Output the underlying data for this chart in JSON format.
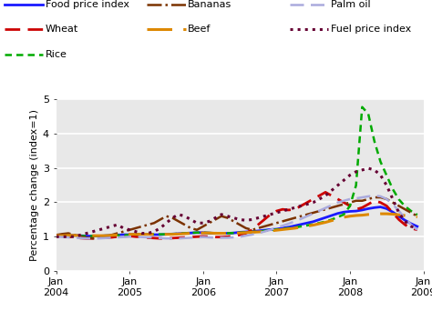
{
  "ylabel": "Percentage change (index=1)",
  "ylim": [
    0,
    5
  ],
  "yticks": [
    0,
    1,
    2,
    3,
    4,
    5
  ],
  "background_color": "#e8e8e8",
  "series": {
    "Food price index": {
      "color": "#1a1aff",
      "linestyle": "solid",
      "linewidth": 2.0,
      "dashes": null,
      "values": [
        1.02,
        1.02,
        1.03,
        1.03,
        1.02,
        1.01,
        1.01,
        1.01,
        1.02,
        1.03,
        1.04,
        1.05,
        1.05,
        1.06,
        1.06,
        1.06,
        1.05,
        1.05,
        1.06,
        1.07,
        1.08,
        1.09,
        1.1,
        1.11,
        1.11,
        1.1,
        1.09,
        1.09,
        1.09,
        1.1,
        1.12,
        1.13,
        1.14,
        1.16,
        1.18,
        1.2,
        1.21,
        1.24,
        1.27,
        1.31,
        1.35,
        1.39,
        1.43,
        1.49,
        1.55,
        1.61,
        1.67,
        1.71,
        1.73,
        1.74,
        1.77,
        1.81,
        1.84,
        1.86,
        1.81,
        1.71,
        1.59,
        1.47,
        1.37,
        1.29
      ]
    },
    "Wheat": {
      "color": "#cc0000",
      "linestyle": "dashed",
      "linewidth": 2.0,
      "dashes": [
        6,
        3
      ],
      "values": [
        1.03,
        1.01,
        0.99,
        0.97,
        0.95,
        0.94,
        0.94,
        0.95,
        0.96,
        0.97,
        0.99,
        1.0,
        1.01,
        0.99,
        0.98,
        0.96,
        0.95,
        0.94,
        0.94,
        0.95,
        0.96,
        0.97,
        0.98,
        0.99,
        1.0,
        0.99,
        0.98,
        0.98,
        0.99,
        1.01,
        1.04,
        1.09,
        1.19,
        1.34,
        1.49,
        1.64,
        1.74,
        1.79,
        1.77,
        1.79,
        1.89,
        1.99,
        2.09,
        2.19,
        2.29,
        2.19,
        2.09,
        1.99,
        1.89,
        1.79,
        1.84,
        1.94,
        2.04,
        1.99,
        1.89,
        1.69,
        1.49,
        1.34,
        1.24,
        1.19
      ]
    },
    "Rice": {
      "color": "#00aa00",
      "linestyle": "dashed",
      "linewidth": 1.8,
      "dashes": [
        3,
        2,
        3,
        2
      ],
      "values": [
        1.02,
        1.02,
        1.02,
        1.02,
        1.01,
        1.01,
        1.01,
        1.01,
        1.02,
        1.02,
        1.03,
        1.03,
        1.04,
        1.05,
        1.06,
        1.06,
        1.06,
        1.06,
        1.06,
        1.07,
        1.08,
        1.09,
        1.1,
        1.11,
        1.11,
        1.1,
        1.1,
        1.09,
        1.09,
        1.1,
        1.11,
        1.12,
        1.13,
        1.14,
        1.16,
        1.18,
        1.2,
        1.22,
        1.24,
        1.26,
        1.29,
        1.32,
        1.35,
        1.39,
        1.43,
        1.49,
        1.56,
        1.64,
        1.89,
        2.49,
        4.78,
        4.58,
        3.78,
        3.18,
        2.78,
        2.38,
        2.08,
        1.88,
        1.74,
        1.63
      ]
    },
    "Bananas": {
      "color": "#7b3200",
      "linestyle": "dashdot",
      "linewidth": 1.8,
      "dashes": null,
      "values": [
        1.04,
        1.07,
        1.09,
        1.04,
        0.99,
        0.96,
        0.94,
        0.96,
        0.99,
        1.04,
        1.09,
        1.14,
        1.19,
        1.24,
        1.29,
        1.34,
        1.39,
        1.49,
        1.59,
        1.54,
        1.44,
        1.34,
        1.24,
        1.19,
        1.29,
        1.39,
        1.49,
        1.59,
        1.54,
        1.44,
        1.34,
        1.24,
        1.19,
        1.24,
        1.29,
        1.34,
        1.39,
        1.44,
        1.49,
        1.54,
        1.59,
        1.64,
        1.69,
        1.74,
        1.79,
        1.84,
        1.89,
        1.94,
        1.99,
        2.04,
        2.04,
        2.09,
        2.14,
        2.14,
        2.09,
        1.99,
        1.89,
        1.79,
        1.69,
        1.59
      ]
    },
    "Beef": {
      "color": "#dd8800",
      "linestyle": "dashed",
      "linewidth": 2.2,
      "dashes": [
        9,
        4
      ],
      "values": [
        1.02,
        1.02,
        1.03,
        1.03,
        1.02,
        1.02,
        1.02,
        1.02,
        1.02,
        1.03,
        1.04,
        1.05,
        1.06,
        1.06,
        1.06,
        1.06,
        1.06,
        1.06,
        1.06,
        1.06,
        1.07,
        1.08,
        1.09,
        1.1,
        1.1,
        1.1,
        1.09,
        1.09,
        1.09,
        1.09,
        1.1,
        1.11,
        1.12,
        1.13,
        1.14,
        1.16,
        1.18,
        1.2,
        1.22,
        1.24,
        1.27,
        1.3,
        1.33,
        1.37,
        1.41,
        1.46,
        1.51,
        1.56,
        1.59,
        1.61,
        1.62,
        1.64,
        1.65,
        1.66,
        1.66,
        1.65,
        1.63,
        1.61,
        1.59,
        1.57
      ]
    },
    "Palm oil": {
      "color": "#aaaadd",
      "linestyle": "dashed",
      "linewidth": 1.8,
      "dashes": [
        6,
        3
      ],
      "values": [
        0.99,
        0.98,
        0.97,
        0.96,
        0.95,
        0.94,
        0.94,
        0.94,
        0.95,
        0.96,
        0.97,
        0.98,
        0.99,
        0.99,
        0.98,
        0.97,
        0.96,
        0.95,
        0.94,
        0.94,
        0.94,
        0.95,
        0.96,
        0.97,
        0.98,
        0.97,
        0.96,
        0.96,
        0.96,
        0.97,
        0.99,
        1.02,
        1.05,
        1.09,
        1.14,
        1.19,
        1.25,
        1.31,
        1.37,
        1.44,
        1.51,
        1.59,
        1.67,
        1.75,
        1.83,
        1.91,
        1.99,
        2.04,
        2.09,
        2.11,
        2.14,
        2.17,
        2.19,
        2.17,
        2.09,
        1.94,
        1.74,
        1.54,
        1.34,
        1.19
      ]
    },
    "Fuel price index": {
      "color": "#660033",
      "linestyle": "dotted",
      "linewidth": 2.2,
      "dashes": null,
      "values": [
        0.99,
        0.99,
        0.99,
        0.99,
        1.04,
        1.09,
        1.14,
        1.19,
        1.24,
        1.29,
        1.34,
        1.24,
        1.19,
        1.14,
        1.09,
        1.09,
        1.14,
        1.24,
        1.39,
        1.54,
        1.64,
        1.59,
        1.49,
        1.39,
        1.39,
        1.44,
        1.54,
        1.64,
        1.59,
        1.54,
        1.49,
        1.47,
        1.49,
        1.54,
        1.59,
        1.64,
        1.69,
        1.74,
        1.79,
        1.84,
        1.89,
        1.94,
        1.99,
        2.09,
        2.19,
        2.34,
        2.49,
        2.64,
        2.79,
        2.89,
        2.94,
        2.99,
        2.94,
        2.79,
        2.49,
        2.09,
        1.69,
        1.44,
        1.29,
        1.24
      ]
    }
  },
  "xtick_positions": [
    0,
    12,
    24,
    36,
    48,
    60
  ],
  "xtick_labels": [
    "Jan\n2004",
    "Jan\n2005",
    "Jan\n2006",
    "Jan\n2007",
    "Jan\n2008",
    "Jan\n2009"
  ],
  "legend_rows": [
    [
      "Food price index",
      "Bananas",
      "Palm oil"
    ],
    [
      "Wheat",
      "Beef",
      "Fuel price index"
    ],
    [
      "Rice"
    ]
  ]
}
